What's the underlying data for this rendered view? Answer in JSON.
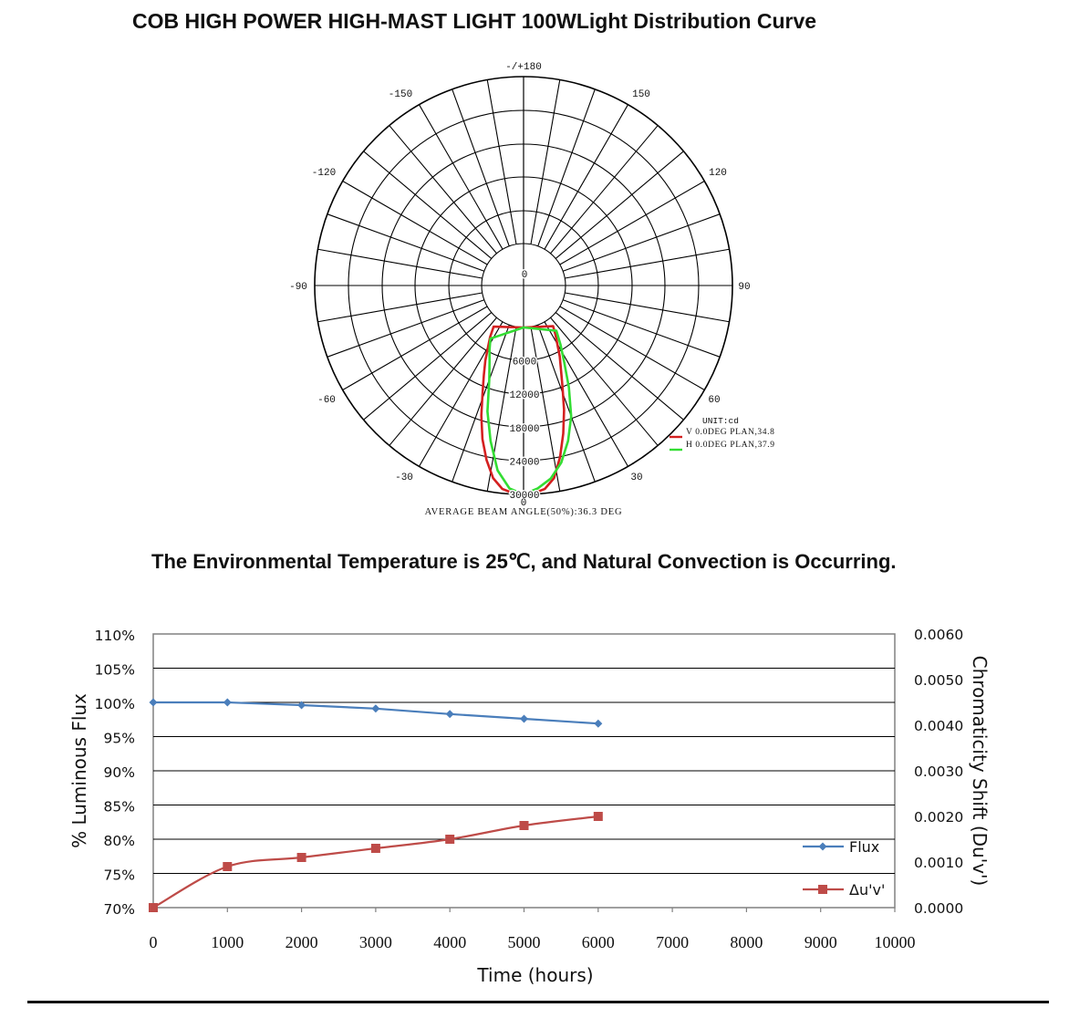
{
  "page": {
    "title": "COB HIGH POWER HIGH-MAST LIGHT 100WLight Distribution Curve",
    "environment_note": "The Environmental Temperature is 25℃, and Natural Convection is Occurring."
  },
  "chart_data": [
    {
      "type": "polar",
      "name": "Light Distribution Curve",
      "angle_labels": [
        {
          "angle": 180,
          "text": "-/+180"
        },
        {
          "angle": 150,
          "text": "150"
        },
        {
          "angle": -150,
          "text": "-150"
        },
        {
          "angle": 120,
          "text": "120"
        },
        {
          "angle": -120,
          "text": "-120"
        },
        {
          "angle": 90,
          "text": "90"
        },
        {
          "angle": -90,
          "text": "-90"
        },
        {
          "angle": 60,
          "text": "60"
        },
        {
          "angle": -60,
          "text": "-60"
        },
        {
          "angle": 30,
          "text": "30"
        },
        {
          "angle": -30,
          "text": "-30"
        },
        {
          "angle": 0,
          "text": "0"
        }
      ],
      "radial_ticks": [
        {
          "value": 0,
          "text": "0"
        },
        {
          "value": 6000,
          "text": "6000"
        },
        {
          "value": 12000,
          "text": "12000"
        },
        {
          "value": 18000,
          "text": "18000"
        },
        {
          "value": 24000,
          "text": "24000"
        },
        {
          "value": 30000,
          "text": "30000"
        }
      ],
      "r_max": 30000,
      "unit_label": "UNIT:cd",
      "beam_angle_label": "AVERAGE BEAM ANGLE(50%):36.3 DEG",
      "series": [
        {
          "name": "V 0.0DEG PLAN,34.8",
          "color": "#d42020",
          "points": [
            [
              -36,
              1600
            ],
            [
              -33,
              3500
            ],
            [
              -30,
              5200
            ],
            [
              -27,
              7600
            ],
            [
              -24,
              10000
            ],
            [
              -21,
              13000
            ],
            [
              -18,
              17000
            ],
            [
              -15,
              21000
            ],
            [
              -12,
              24500
            ],
            [
              -9,
              27500
            ],
            [
              -6,
              29200
            ],
            [
              -3,
              29800
            ],
            [
              0,
              30000
            ],
            [
              3,
              29800
            ],
            [
              6,
              29200
            ],
            [
              9,
              27500
            ],
            [
              12,
              24000
            ],
            [
              15,
              20000
            ],
            [
              18,
              16000
            ],
            [
              21,
              12000
            ],
            [
              24,
              9000
            ],
            [
              27,
              6800
            ],
            [
              30,
              4600
            ],
            [
              33,
              3000
            ],
            [
              36,
              1500
            ]
          ]
        },
        {
          "name": "H 0.0DEG PLAN,37.9",
          "color": "#33dd33",
          "points": [
            [
              -32,
              3700
            ],
            [
              -28,
              5500
            ],
            [
              -24,
              7500
            ],
            [
              -20,
              10500
            ],
            [
              -16,
              16000
            ],
            [
              -12,
              21000
            ],
            [
              -8,
              26000
            ],
            [
              -4,
              29000
            ],
            [
              0,
              30000
            ],
            [
              4,
              29000
            ],
            [
              8,
              27500
            ],
            [
              12,
              25000
            ],
            [
              16,
              21500
            ],
            [
              20,
              17500
            ],
            [
              24,
              12500
            ],
            [
              28,
              8000
            ],
            [
              32,
              5000
            ],
            [
              36,
              2500
            ]
          ]
        }
      ]
    },
    {
      "type": "line",
      "name": "Lumen maintenance",
      "xlabel": "Time (hours)",
      "ylabel": "% Luminous Flux",
      "y2label": "Chromaticity Shift (Du'v')",
      "x_ticks": [
        0,
        1000,
        2000,
        3000,
        4000,
        5000,
        6000,
        7000,
        8000,
        9000,
        10000
      ],
      "y_ticks": [
        "70%",
        "75%",
        "80%",
        "85%",
        "90%",
        "95%",
        "100%",
        "105%",
        "110%"
      ],
      "y2_ticks": [
        "0.0000",
        "0.0010",
        "0.0020",
        "0.0030",
        "0.0040",
        "0.0050",
        "0.0060"
      ],
      "xlim": [
        0,
        10000
      ],
      "ylim": [
        70,
        110
      ],
      "y2lim": [
        0,
        0.006
      ],
      "series": [
        {
          "name": "Flux",
          "axis": "left",
          "color": "#4a7ebb",
          "marker": "diamond",
          "x": [
            0,
            1000,
            2000,
            3000,
            4000,
            5000,
            6000
          ],
          "values": [
            100,
            100,
            99.6,
            99.1,
            98.3,
            97.6,
            96.9
          ]
        },
        {
          "name": "Δu'v'",
          "axis": "right",
          "color": "#be4b48",
          "marker": "square",
          "x": [
            0,
            1000,
            2000,
            3000,
            4000,
            5000,
            6000
          ],
          "values": [
            0.0,
            0.0009,
            0.0011,
            0.0013,
            0.0015,
            0.0018,
            0.002
          ]
        }
      ]
    }
  ]
}
